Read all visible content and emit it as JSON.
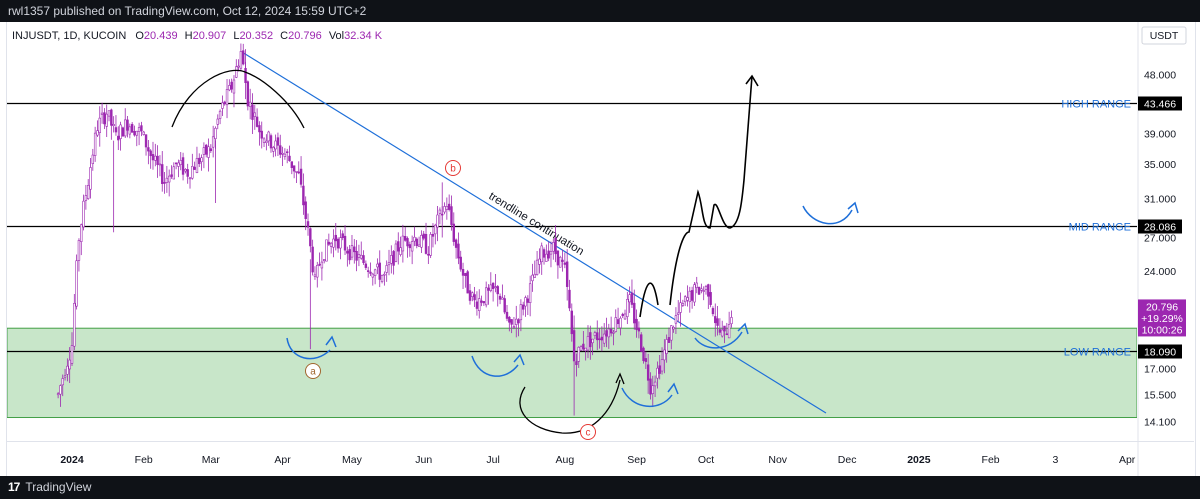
{
  "header": {
    "publish_text": "rwl1357 published on TradingView.com, Oct 12, 2024 15:59 UTC+2"
  },
  "legend": {
    "symbol": "INJUSDT, 1D, KUCOIN",
    "o_label": "O",
    "o": "20.439",
    "h_label": "H",
    "h": "20.907",
    "l_label": "L",
    "l": "20.352",
    "c_label": "C",
    "c": "20.796",
    "vol_label": "Vol",
    "vol": "32.34 K"
  },
  "currency": "USDT",
  "footer": {
    "brand": "TradingView",
    "logo_text": "17"
  },
  "chart_data": {
    "type": "candlestick",
    "symbol": "INJUSDT",
    "interval": "1D",
    "exchange": "KUCOIN",
    "y_scale": "log",
    "ylim": [
      13.5,
      58
    ],
    "y_ticks": [
      "48.000",
      "39.000",
      "35.000",
      "31.000",
      "27.000",
      "24.000",
      "17.000",
      "15.500",
      "14.100"
    ],
    "x_ticks": [
      "2024",
      "Feb",
      "Mar",
      "Apr",
      "May",
      "Jun",
      "Jul",
      "Aug",
      "Sep",
      "Oct",
      "Nov",
      "Dec",
      "2025",
      "Feb",
      "3",
      "Apr"
    ],
    "price_levels": [
      {
        "label": "HIGH RANGE",
        "value": "43.466"
      },
      {
        "label": "MID RANGE",
        "value": "28.086"
      },
      {
        "label": "LOW RANGE",
        "value": "18.090"
      }
    ],
    "last_price": {
      "value": "20.796",
      "change": "+19.29%",
      "countdown": "10:00:26"
    },
    "zone": {
      "from": 14.3,
      "to": 19.6
    },
    "trendline_label": "trendline continuation",
    "markers": [
      "a",
      "b",
      "c"
    ],
    "price_path": [
      [
        "2023-12-26",
        15.5
      ],
      [
        "2024-01-01",
        18.5
      ],
      [
        "2024-01-04",
        27.0
      ],
      [
        "2024-01-08",
        33.0
      ],
      [
        "2024-01-12",
        40.0
      ],
      [
        "2024-01-16",
        42.0
      ],
      [
        "2024-01-20",
        38.5
      ],
      [
        "2024-01-25",
        40.5
      ],
      [
        "2024-01-31",
        39.0
      ],
      [
        "2024-02-05",
        35.5
      ],
      [
        "2024-02-10",
        33.0
      ],
      [
        "2024-02-15",
        35.0
      ],
      [
        "2024-02-20",
        34.0
      ],
      [
        "2024-02-25",
        35.5
      ],
      [
        "2024-03-01",
        37.0
      ],
      [
        "2024-03-05",
        42.0
      ],
      [
        "2024-03-10",
        46.0
      ],
      [
        "2024-03-14",
        52.0
      ],
      [
        "2024-03-17",
        44.0
      ],
      [
        "2024-03-22",
        39.5
      ],
      [
        "2024-03-28",
        37.5
      ],
      [
        "2024-04-03",
        36.0
      ],
      [
        "2024-04-08",
        33.5
      ],
      [
        "2024-04-12",
        27.5
      ],
      [
        "2024-04-15",
        23.0
      ],
      [
        "2024-04-18",
        25.5
      ],
      [
        "2024-04-24",
        27.0
      ],
      [
        "2024-05-01",
        25.5
      ],
      [
        "2024-05-08",
        24.5
      ],
      [
        "2024-05-15",
        23.5
      ],
      [
        "2024-05-22",
        26.5
      ],
      [
        "2024-05-28",
        27.0
      ],
      [
        "2024-06-03",
        26.0
      ],
      [
        "2024-06-07",
        28.5
      ],
      [
        "2024-06-11",
        30.5
      ],
      [
        "2024-06-15",
        26.0
      ],
      [
        "2024-06-19",
        23.0
      ],
      [
        "2024-06-23",
        21.5
      ],
      [
        "2024-06-28",
        22.0
      ],
      [
        "2024-07-03",
        22.5
      ],
      [
        "2024-07-08",
        19.5
      ],
      [
        "2024-07-12",
        20.5
      ],
      [
        "2024-07-17",
        22.5
      ],
      [
        "2024-07-22",
        25.5
      ],
      [
        "2024-07-27",
        26.0
      ],
      [
        "2024-08-01",
        24.0
      ],
      [
        "2024-08-05",
        17.5
      ],
      [
        "2024-08-09",
        18.5
      ],
      [
        "2024-08-14",
        19.0
      ],
      [
        "2024-08-20",
        19.5
      ],
      [
        "2024-08-25",
        20.5
      ],
      [
        "2024-08-29",
        21.5
      ],
      [
        "2024-09-03",
        18.5
      ],
      [
        "2024-09-07",
        16.0
      ],
      [
        "2024-09-12",
        17.5
      ],
      [
        "2024-09-17",
        20.0
      ],
      [
        "2024-09-22",
        21.5
      ],
      [
        "2024-09-27",
        22.5
      ],
      [
        "2024-10-02",
        22.5
      ],
      [
        "2024-10-06",
        19.5
      ],
      [
        "2024-10-09",
        19.0
      ],
      [
        "2024-10-12",
        20.8
      ]
    ]
  },
  "colors": {
    "candle": "#9c27b0",
    "zone": "#c8e6c9",
    "zone_border": "#43a047",
    "trendline": "#1e6fd9",
    "level_line": "#000000",
    "annotation_blue": "#1e6fd9",
    "marker_red": "#e53935",
    "marker_brown": "#a1662f",
    "last_price_bg": "#9c27b0"
  }
}
